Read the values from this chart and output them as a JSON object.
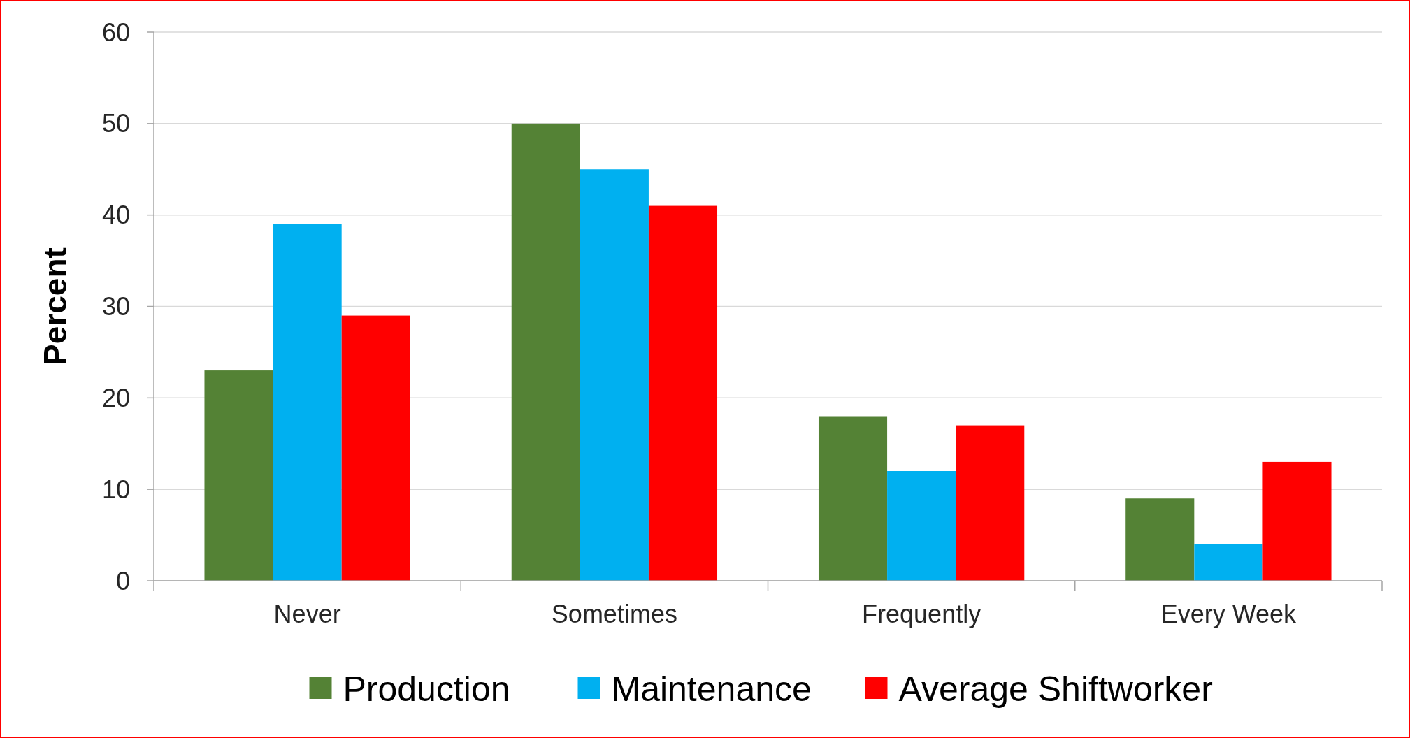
{
  "chart_data": {
    "type": "bar",
    "ylabel": "Percent",
    "categories": [
      "Never",
      "Sometimes",
      "Frequently",
      "Every Week"
    ],
    "series": [
      {
        "name": "Production",
        "color": "#548235",
        "values": [
          23,
          50,
          18,
          9
        ]
      },
      {
        "name": "Maintenance",
        "color": "#00b0f0",
        "values": [
          39,
          45,
          12,
          4
        ]
      },
      {
        "name": "Average Shiftworker",
        "color": "#ff0000",
        "values": [
          29,
          41,
          17,
          13
        ]
      }
    ],
    "ylim": [
      0,
      60
    ],
    "yticks": [
      0,
      10,
      20,
      30,
      40,
      50,
      60
    ],
    "grid": "y",
    "legend": "bottom"
  }
}
